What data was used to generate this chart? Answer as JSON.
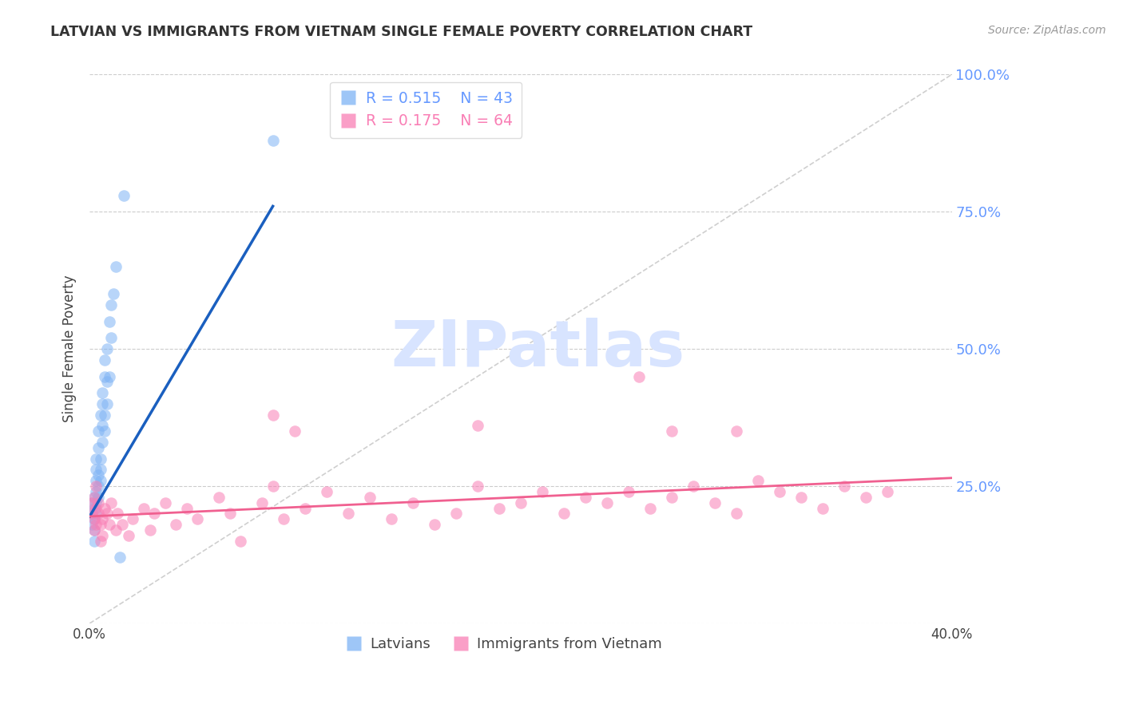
{
  "title": "LATVIAN VS IMMIGRANTS FROM VIETNAM SINGLE FEMALE POVERTY CORRELATION CHART",
  "source": "Source: ZipAtlas.com",
  "ylabel": "Single Female Poverty",
  "xlim": [
    0.0,
    0.4
  ],
  "ylim": [
    0.0,
    1.0
  ],
  "legend_labels": [
    "Latvians",
    "Immigrants from Vietnam"
  ],
  "legend_r": [
    "R = 0.515",
    "N = 43"
  ],
  "legend_n": [
    "R = 0.175",
    "N = 64"
  ],
  "blue_color": "#7EB3F5",
  "pink_color": "#F97FB5",
  "blue_line_color": "#1A5FBF",
  "pink_line_color": "#F06090",
  "right_axis_color": "#6699FF",
  "watermark_color": "#D8E4FF",
  "latvian_x": [
    0.001,
    0.001,
    0.001,
    0.002,
    0.002,
    0.002,
    0.002,
    0.002,
    0.003,
    0.003,
    0.003,
    0.003,
    0.003,
    0.003,
    0.004,
    0.004,
    0.004,
    0.004,
    0.004,
    0.005,
    0.005,
    0.005,
    0.005,
    0.006,
    0.006,
    0.006,
    0.006,
    0.007,
    0.007,
    0.007,
    0.007,
    0.008,
    0.008,
    0.008,
    0.009,
    0.009,
    0.01,
    0.01,
    0.011,
    0.012,
    0.014,
    0.016,
    0.085
  ],
  "latvian_y": [
    0.2,
    0.22,
    0.18,
    0.19,
    0.21,
    0.23,
    0.17,
    0.15,
    0.24,
    0.26,
    0.22,
    0.2,
    0.28,
    0.3,
    0.25,
    0.27,
    0.23,
    0.32,
    0.35,
    0.28,
    0.3,
    0.26,
    0.38,
    0.33,
    0.36,
    0.4,
    0.42,
    0.35,
    0.38,
    0.45,
    0.48,
    0.4,
    0.44,
    0.5,
    0.45,
    0.55,
    0.52,
    0.58,
    0.6,
    0.65,
    0.12,
    0.78,
    0.88
  ],
  "vietnam_x": [
    0.001,
    0.001,
    0.002,
    0.002,
    0.002,
    0.003,
    0.003,
    0.003,
    0.004,
    0.004,
    0.005,
    0.005,
    0.006,
    0.006,
    0.007,
    0.008,
    0.009,
    0.01,
    0.012,
    0.013,
    0.015,
    0.018,
    0.02,
    0.025,
    0.028,
    0.03,
    0.035,
    0.04,
    0.045,
    0.05,
    0.06,
    0.065,
    0.07,
    0.08,
    0.085,
    0.09,
    0.1,
    0.11,
    0.12,
    0.13,
    0.14,
    0.15,
    0.16,
    0.17,
    0.18,
    0.19,
    0.2,
    0.21,
    0.22,
    0.23,
    0.24,
    0.25,
    0.26,
    0.27,
    0.28,
    0.29,
    0.3,
    0.31,
    0.32,
    0.33,
    0.34,
    0.35,
    0.36,
    0.37
  ],
  "vietnam_y": [
    0.2,
    0.22,
    0.19,
    0.23,
    0.17,
    0.21,
    0.18,
    0.25,
    0.2,
    0.22,
    0.18,
    0.15,
    0.19,
    0.16,
    0.21,
    0.2,
    0.18,
    0.22,
    0.17,
    0.2,
    0.18,
    0.16,
    0.19,
    0.21,
    0.17,
    0.2,
    0.22,
    0.18,
    0.21,
    0.19,
    0.23,
    0.2,
    0.15,
    0.22,
    0.25,
    0.19,
    0.21,
    0.24,
    0.2,
    0.23,
    0.19,
    0.22,
    0.18,
    0.2,
    0.25,
    0.21,
    0.22,
    0.24,
    0.2,
    0.23,
    0.22,
    0.24,
    0.21,
    0.23,
    0.25,
    0.22,
    0.2,
    0.26,
    0.24,
    0.23,
    0.21,
    0.25,
    0.23,
    0.24
  ],
  "vietnam_y_outliers": [
    [
      0.255,
      0.45
    ],
    [
      0.18,
      0.36
    ],
    [
      0.27,
      0.35
    ],
    [
      0.3,
      0.35
    ],
    [
      0.085,
      0.38
    ],
    [
      0.095,
      0.35
    ]
  ],
  "blue_line_x": [
    0.0,
    0.085
  ],
  "blue_line_y": [
    0.195,
    0.76
  ],
  "pink_line_x": [
    0.0,
    0.4
  ],
  "pink_line_y": [
    0.195,
    0.265
  ],
  "diag_line_x": [
    0.0,
    0.4
  ],
  "diag_line_y": [
    0.0,
    1.0
  ]
}
